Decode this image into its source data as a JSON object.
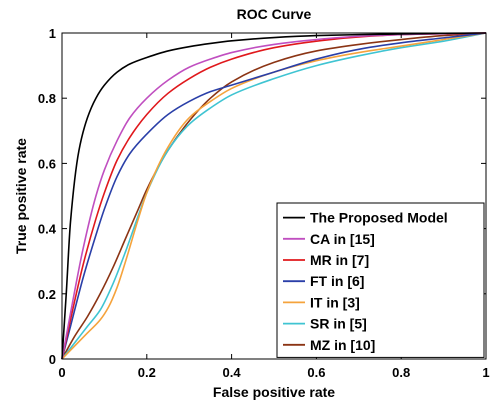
{
  "chart_data": {
    "type": "line",
    "title": "ROC Curve",
    "xlabel": "False positive rate",
    "ylabel": "True positive rate",
    "xlim": [
      0,
      1
    ],
    "ylim": [
      0,
      1
    ],
    "xticks": [
      0,
      0.2,
      0.4,
      0.6,
      0.8,
      1
    ],
    "yticks": [
      0,
      0.2,
      0.4,
      0.6,
      0.8,
      1
    ],
    "xtick_labels": [
      "0",
      "0.2",
      "0.4",
      "0.6",
      "0.8",
      "1"
    ],
    "ytick_labels": [
      "0",
      "0.2",
      "0.4",
      "0.6",
      "0.8",
      "1"
    ],
    "grid": false,
    "legend_position": "bottom-right",
    "series": [
      {
        "name": "The Proposed Model",
        "color": "#000000",
        "x": [
          0,
          0.01,
          0.02,
          0.04,
          0.06,
          0.08,
          0.1,
          0.13,
          0.16,
          0.2,
          0.25,
          0.3,
          0.35,
          0.4,
          0.5,
          0.6,
          0.7,
          0.8,
          0.9,
          1
        ],
        "y": [
          0,
          0.2,
          0.42,
          0.64,
          0.74,
          0.8,
          0.84,
          0.88,
          0.905,
          0.925,
          0.945,
          0.958,
          0.968,
          0.976,
          0.986,
          0.992,
          0.995,
          0.997,
          0.999,
          1
        ]
      },
      {
        "name": "CA in [15]",
        "color": "#c04fc0",
        "x": [
          0,
          0.02,
          0.05,
          0.08,
          0.1,
          0.13,
          0.16,
          0.2,
          0.25,
          0.3,
          0.35,
          0.4,
          0.5,
          0.6,
          0.7,
          0.8,
          0.9,
          1
        ],
        "y": [
          0,
          0.14,
          0.34,
          0.5,
          0.58,
          0.67,
          0.74,
          0.8,
          0.855,
          0.895,
          0.92,
          0.94,
          0.965,
          0.98,
          0.99,
          0.995,
          0.998,
          1
        ]
      },
      {
        "name": "MR in [7]",
        "color": "#e0181c",
        "x": [
          0,
          0.02,
          0.05,
          0.08,
          0.1,
          0.13,
          0.16,
          0.2,
          0.25,
          0.3,
          0.35,
          0.4,
          0.5,
          0.6,
          0.7,
          0.8,
          0.9,
          1
        ],
        "y": [
          0,
          0.12,
          0.29,
          0.43,
          0.51,
          0.61,
          0.68,
          0.75,
          0.815,
          0.86,
          0.895,
          0.92,
          0.955,
          0.975,
          0.988,
          0.995,
          0.998,
          1
        ]
      },
      {
        "name": "FT in [6]",
        "color": "#2a3fa8",
        "x": [
          0,
          0.02,
          0.05,
          0.08,
          0.1,
          0.13,
          0.16,
          0.2,
          0.25,
          0.3,
          0.35,
          0.4,
          0.5,
          0.6,
          0.7,
          0.8,
          0.9,
          1
        ],
        "y": [
          0,
          0.1,
          0.25,
          0.38,
          0.46,
          0.56,
          0.63,
          0.69,
          0.75,
          0.79,
          0.82,
          0.84,
          0.88,
          0.92,
          0.95,
          0.97,
          0.985,
          1
        ]
      },
      {
        "name": "IT in [3]",
        "color": "#f5a33c",
        "x": [
          0,
          0.03,
          0.06,
          0.09,
          0.11,
          0.13,
          0.15,
          0.18,
          0.2,
          0.25,
          0.3,
          0.35,
          0.4,
          0.5,
          0.6,
          0.7,
          0.8,
          0.9,
          1
        ],
        "y": [
          0,
          0.04,
          0.08,
          0.12,
          0.16,
          0.22,
          0.3,
          0.43,
          0.51,
          0.65,
          0.74,
          0.79,
          0.83,
          0.88,
          0.915,
          0.94,
          0.96,
          0.98,
          1
        ]
      },
      {
        "name": "SR in [5]",
        "color": "#3fc4d2",
        "x": [
          0,
          0.03,
          0.06,
          0.09,
          0.12,
          0.15,
          0.18,
          0.2,
          0.25,
          0.3,
          0.35,
          0.4,
          0.5,
          0.6,
          0.7,
          0.8,
          0.9,
          1
        ],
        "y": [
          0,
          0.05,
          0.1,
          0.15,
          0.23,
          0.33,
          0.44,
          0.51,
          0.64,
          0.72,
          0.77,
          0.81,
          0.86,
          0.9,
          0.93,
          0.955,
          0.975,
          1
        ]
      },
      {
        "name": "MZ in [10]",
        "color": "#8b3414",
        "x": [
          0,
          0.03,
          0.06,
          0.09,
          0.12,
          0.15,
          0.18,
          0.2,
          0.25,
          0.3,
          0.35,
          0.4,
          0.5,
          0.6,
          0.7,
          0.8,
          0.9,
          1
        ],
        "y": [
          0,
          0.07,
          0.13,
          0.2,
          0.28,
          0.37,
          0.46,
          0.52,
          0.64,
          0.73,
          0.8,
          0.85,
          0.91,
          0.945,
          0.965,
          0.98,
          0.992,
          1
        ]
      }
    ]
  }
}
